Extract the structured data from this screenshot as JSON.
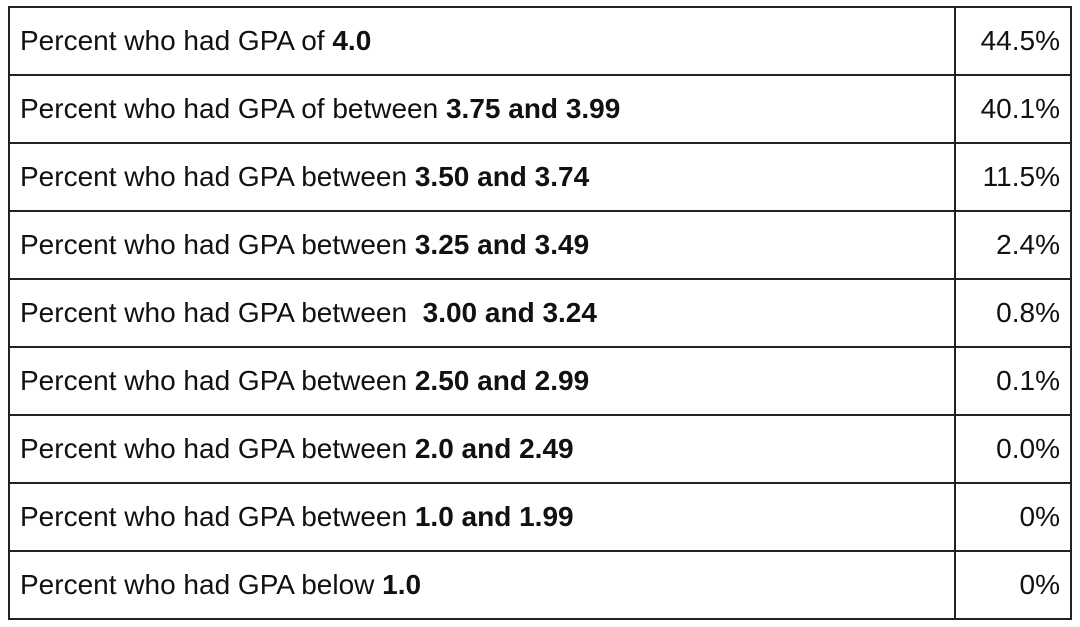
{
  "table": {
    "rows": [
      {
        "label": "Percent who had GPA of ",
        "bold": "4.0",
        "value": "44.5%"
      },
      {
        "label": "Percent who had GPA of between ",
        "bold": "3.75 and 3.99",
        "value": "40.1%"
      },
      {
        "label": "Percent who had GPA between ",
        "bold": "3.50 and 3.74",
        "value": "11.5%"
      },
      {
        "label": "Percent who had GPA between ",
        "bold": "3.25 and 3.49",
        "value": "2.4%"
      },
      {
        "label": "Percent who had GPA between  ",
        "bold": "3.00 and 3.24",
        "value": "0.8%"
      },
      {
        "label": "Percent who had GPA between ",
        "bold": "2.50 and 2.99",
        "value": "0.1%"
      },
      {
        "label": "Percent who had GPA between ",
        "bold": "2.0 and 2.49",
        "value": "0.0%"
      },
      {
        "label": "Percent who had GPA between ",
        "bold": "1.0 and 1.99",
        "value": "0%"
      },
      {
        "label": "Percent who had GPA below ",
        "bold": "1.0",
        "value": "0%"
      }
    ]
  }
}
